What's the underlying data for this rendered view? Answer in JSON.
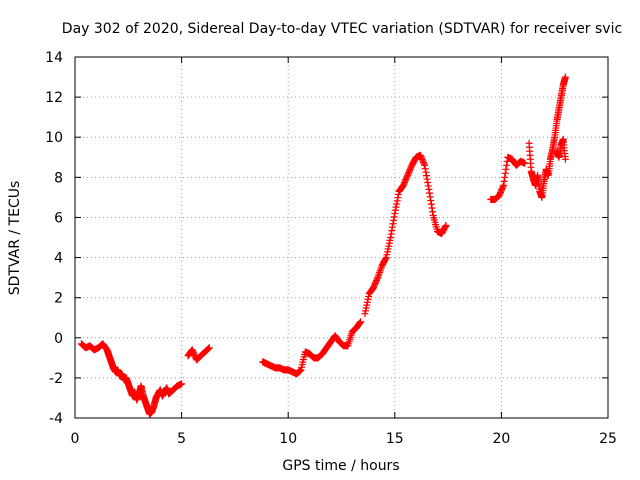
{
  "chart_data": {
    "type": "scatter",
    "title": "Day 302 of 2020, Sidereal Day-to-day VTEC variation (SDTVAR) for receiver svic",
    "xlabel": "GPS time / hours",
    "ylabel": "SDTVAR / TECUs",
    "xlim": [
      0,
      25
    ],
    "ylim": [
      -4,
      14
    ],
    "x_ticks": [
      0,
      5,
      10,
      15,
      20,
      25
    ],
    "y_ticks": [
      -4,
      -2,
      0,
      2,
      4,
      6,
      8,
      10,
      12,
      14
    ],
    "x_tick_labels": [
      "0",
      "5",
      "10",
      "15",
      "20",
      "25"
    ],
    "y_tick_labels": [
      "-4",
      "-2",
      "0",
      "2",
      "4",
      "6",
      "8",
      "10",
      "12",
      "14"
    ],
    "grid": true,
    "marker": "+",
    "color": "#ff0000",
    "series": [
      {
        "name": "SDTVAR",
        "segments": [
          {
            "x": [
              0.3,
              0.5,
              0.7,
              0.9,
              1.1,
              1.3,
              1.5,
              1.6,
              1.7,
              1.8,
              1.9,
              2.0,
              2.1,
              2.2,
              2.3,
              2.4,
              2.5,
              2.6,
              2.7,
              2.8,
              2.9,
              3.0,
              3.1,
              3.2,
              3.3,
              3.4,
              3.5,
              3.6,
              3.7,
              3.8,
              3.9,
              4.0,
              4.1,
              4.2,
              4.3,
              4.4,
              4.6,
              4.8,
              5.0
            ],
            "y": [
              -0.3,
              -0.5,
              -0.4,
              -0.6,
              -0.5,
              -0.3,
              -0.6,
              -0.9,
              -1.2,
              -1.5,
              -1.7,
              -1.6,
              -1.9,
              -1.8,
              -2.1,
              -2.0,
              -2.3,
              -2.6,
              -2.9,
              -2.7,
              -3.1,
              -2.8,
              -2.4,
              -2.9,
              -3.2,
              -3.5,
              -3.8,
              -3.7,
              -3.4,
              -3.0,
              -2.8,
              -2.6,
              -2.9,
              -2.7,
              -2.5,
              -2.8,
              -2.6,
              -2.4,
              -2.3
            ]
          },
          {
            "x": [
              5.3,
              5.5,
              5.7,
              5.9,
              6.1,
              6.3
            ],
            "y": [
              -0.9,
              -0.6,
              -1.1,
              -0.9,
              -0.7,
              -0.5
            ]
          },
          {
            "x": [
              8.8,
              9.0,
              9.2,
              9.4,
              9.6,
              9.8,
              10.0,
              10.2,
              10.4,
              10.6,
              10.8,
              11.0,
              11.2,
              11.4,
              11.6,
              11.8,
              12.0,
              12.2,
              12.4,
              12.6,
              12.8,
              13.0,
              13.2,
              13.4
            ],
            "y": [
              -1.2,
              -1.3,
              -1.4,
              -1.5,
              -1.5,
              -1.6,
              -1.6,
              -1.7,
              -1.8,
              -1.6,
              -0.7,
              -0.8,
              -1.0,
              -1.0,
              -0.8,
              -0.5,
              -0.2,
              0.1,
              -0.2,
              -0.4,
              -0.4,
              0.3,
              0.5,
              0.8
            ]
          },
          {
            "x": [
              13.6,
              13.8,
              14.0,
              14.2,
              14.4,
              14.6,
              14.8,
              15.0,
              15.2,
              15.4,
              15.6,
              15.8,
              16.0,
              16.2,
              16.4,
              16.6,
              16.8,
              17.0,
              17.2,
              17.4
            ],
            "y": [
              1.2,
              2.2,
              2.5,
              3.0,
              3.6,
              4.0,
              5.0,
              6.2,
              7.3,
              7.6,
              8.1,
              8.6,
              9.0,
              9.1,
              8.6,
              7.4,
              6.1,
              5.3,
              5.2,
              5.6
            ]
          },
          {
            "x": [
              19.5,
              19.7,
              19.9,
              20.1,
              20.3,
              20.5,
              20.7,
              20.9,
              21.1
            ],
            "y": [
              6.9,
              6.9,
              7.1,
              7.6,
              9.0,
              8.9,
              8.6,
              8.8,
              8.7
            ]
          },
          {
            "x": [
              21.3,
              21.4,
              21.5,
              21.6,
              21.7,
              21.8,
              21.9,
              22.0,
              22.1,
              22.2,
              22.3,
              22.4,
              22.5,
              22.6,
              22.7,
              22.8,
              22.9,
              23.0
            ],
            "y": [
              9.7,
              8.3,
              7.9,
              7.6,
              8.1,
              7.3,
              7.0,
              7.8,
              8.4,
              8.1,
              8.9,
              9.4,
              10.0,
              10.8,
              11.4,
              12.0,
              12.6,
              13.0
            ]
          },
          {
            "x": [
              22.6,
              22.7,
              22.8,
              22.9,
              23.0
            ],
            "y": [
              9.3,
              9.0,
              9.6,
              9.9,
              8.9
            ]
          }
        ]
      }
    ]
  }
}
